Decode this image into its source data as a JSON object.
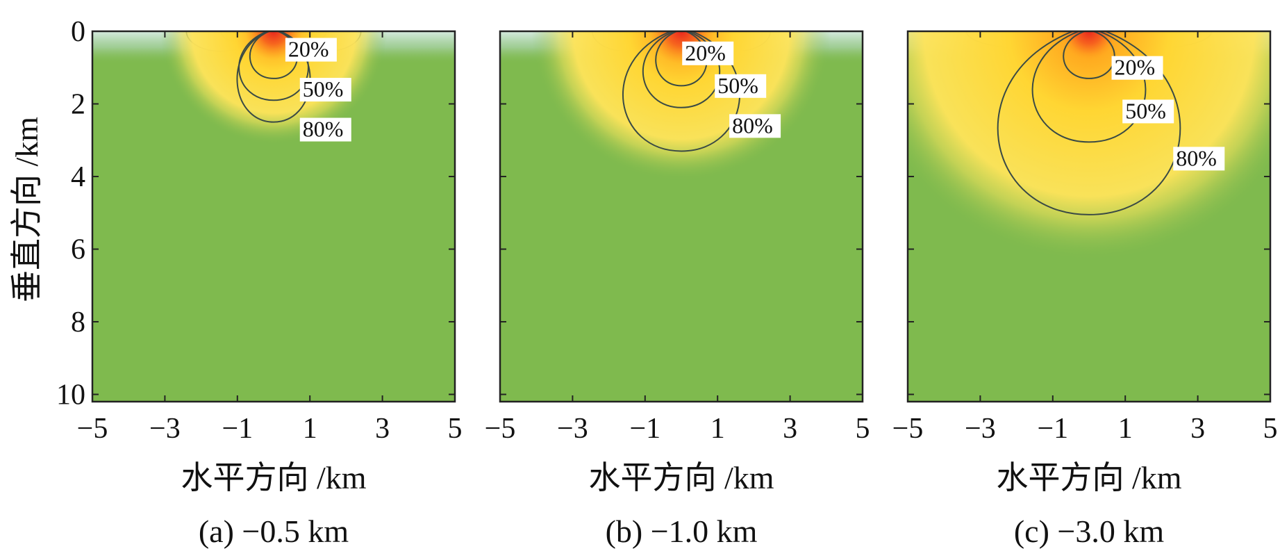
{
  "chart_data": [
    {
      "type": "heatmap",
      "title": "",
      "caption": "(a) −0.5 km",
      "xlabel": "水平方向 /km",
      "ylabel": "垂直方向 /km",
      "xlim": [
        -5,
        5
      ],
      "ylim": [
        0,
        10.2
      ],
      "xticks": [
        -5,
        -3,
        -1,
        1,
        3,
        5
      ],
      "xtick_labels": [
        "−5",
        "−3",
        "−1",
        "1",
        "3",
        "5"
      ],
      "yticks": [
        0,
        2,
        4,
        6,
        8,
        10
      ],
      "ytick_labels": [
        "0",
        "2",
        "4",
        "6",
        "8",
        "10"
      ],
      "y_inverted": true,
      "grid": false,
      "background_color": "#7fba4e",
      "contours": [
        {
          "label": "20%",
          "depth_km": 1.3,
          "half_width_km": 0.65,
          "label_at": [
            0.4,
            0.7
          ]
        },
        {
          "label": "50%",
          "depth_km": 1.9,
          "half_width_km": 0.95,
          "label_at": [
            0.8,
            1.8
          ]
        },
        {
          "label": "80%",
          "depth_km": 2.5,
          "half_width_km": 1.0,
          "label_at": [
            0.8,
            2.9
          ]
        }
      ]
    },
    {
      "type": "heatmap",
      "title": "",
      "caption": "(b) −1.0 km",
      "xlabel": "水平方向 /km",
      "ylabel": "",
      "xlim": [
        -5,
        5
      ],
      "ylim": [
        0,
        10.2
      ],
      "xticks": [
        -5,
        -3,
        -1,
        1,
        3,
        5
      ],
      "xtick_labels": [
        "−5",
        "−3",
        "−1",
        "1",
        "3",
        "5"
      ],
      "yticks": [
        0,
        2,
        4,
        6,
        8,
        10
      ],
      "ytick_labels": [],
      "y_inverted": true,
      "grid": false,
      "background_color": "#7fba4e",
      "contours": [
        {
          "label": "20%",
          "depth_km": 1.5,
          "half_width_km": 0.7,
          "label_at": [
            0.1,
            0.8
          ]
        },
        {
          "label": "50%",
          "depth_km": 2.1,
          "half_width_km": 1.05,
          "label_at": [
            1.0,
            1.7
          ]
        },
        {
          "label": "80%",
          "depth_km": 3.3,
          "half_width_km": 1.6,
          "label_at": [
            1.4,
            2.8
          ]
        }
      ]
    },
    {
      "type": "heatmap",
      "title": "",
      "caption": "(c) −3.0 km",
      "xlabel": "水平方向 /km",
      "ylabel": "",
      "xlim": [
        -5,
        5
      ],
      "ylim": [
        0,
        10.2
      ],
      "xticks": [
        -5,
        -3,
        -1,
        1,
        3,
        5
      ],
      "xtick_labels": [
        "−5",
        "−3",
        "−1",
        "1",
        "3",
        "5"
      ],
      "yticks": [
        0,
        2,
        4,
        6,
        8,
        10
      ],
      "ytick_labels": [],
      "y_inverted": true,
      "grid": false,
      "background_color": "#7fba4e",
      "contours": [
        {
          "label": "20%",
          "depth_km": 1.3,
          "half_width_km": 0.7,
          "label_at": [
            0.7,
            1.2
          ]
        },
        {
          "label": "50%",
          "depth_km": 3.05,
          "half_width_km": 1.55,
          "label_at": [
            1.0,
            2.4
          ]
        },
        {
          "label": "80%",
          "depth_km": 5.05,
          "half_width_km": 2.5,
          "label_at": [
            2.4,
            3.7
          ]
        }
      ]
    }
  ]
}
